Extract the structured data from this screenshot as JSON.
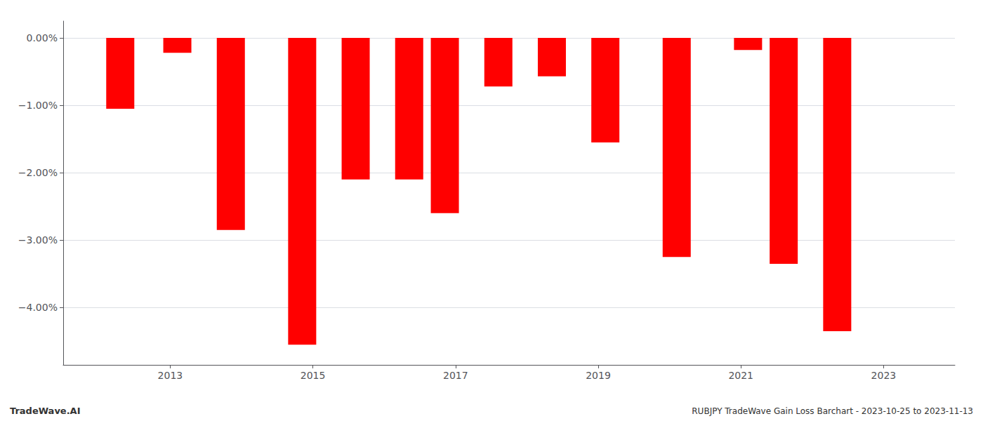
{
  "chart_data": {
    "type": "bar",
    "x": [
      2012.3,
      2013.1,
      2013.85,
      2014.85,
      2015.6,
      2016.35,
      2016.85,
      2017.6,
      2018.35,
      2019.1,
      2020.1,
      2021.1,
      2021.6,
      2022.35
    ],
    "values": [
      -1.05,
      -0.22,
      -2.85,
      -4.55,
      -2.1,
      -2.1,
      -2.6,
      -0.72,
      -0.57,
      -1.55,
      -3.25,
      -0.18,
      -3.35,
      -4.35
    ],
    "color": "#ff0000",
    "xlim": [
      2011.5,
      2024.0
    ],
    "xticks": [
      2013,
      2015,
      2017,
      2019,
      2021,
      2023
    ],
    "ylim": [
      -4.85,
      0.25
    ],
    "yticks": [
      {
        "value": 0.0,
        "label": "0.00%"
      },
      {
        "value": -1.0,
        "label": "−1.00%"
      },
      {
        "value": -2.0,
        "label": "−2.00%"
      },
      {
        "value": -3.0,
        "label": "−3.00%"
      },
      {
        "value": -4.0,
        "label": "−4.00%"
      }
    ],
    "grid": true,
    "annotations": [
      "TradeWave.AI",
      "RUBJPY TradeWave Gain Loss Barchart - 2023-10-25 to 2023-11-13"
    ]
  }
}
